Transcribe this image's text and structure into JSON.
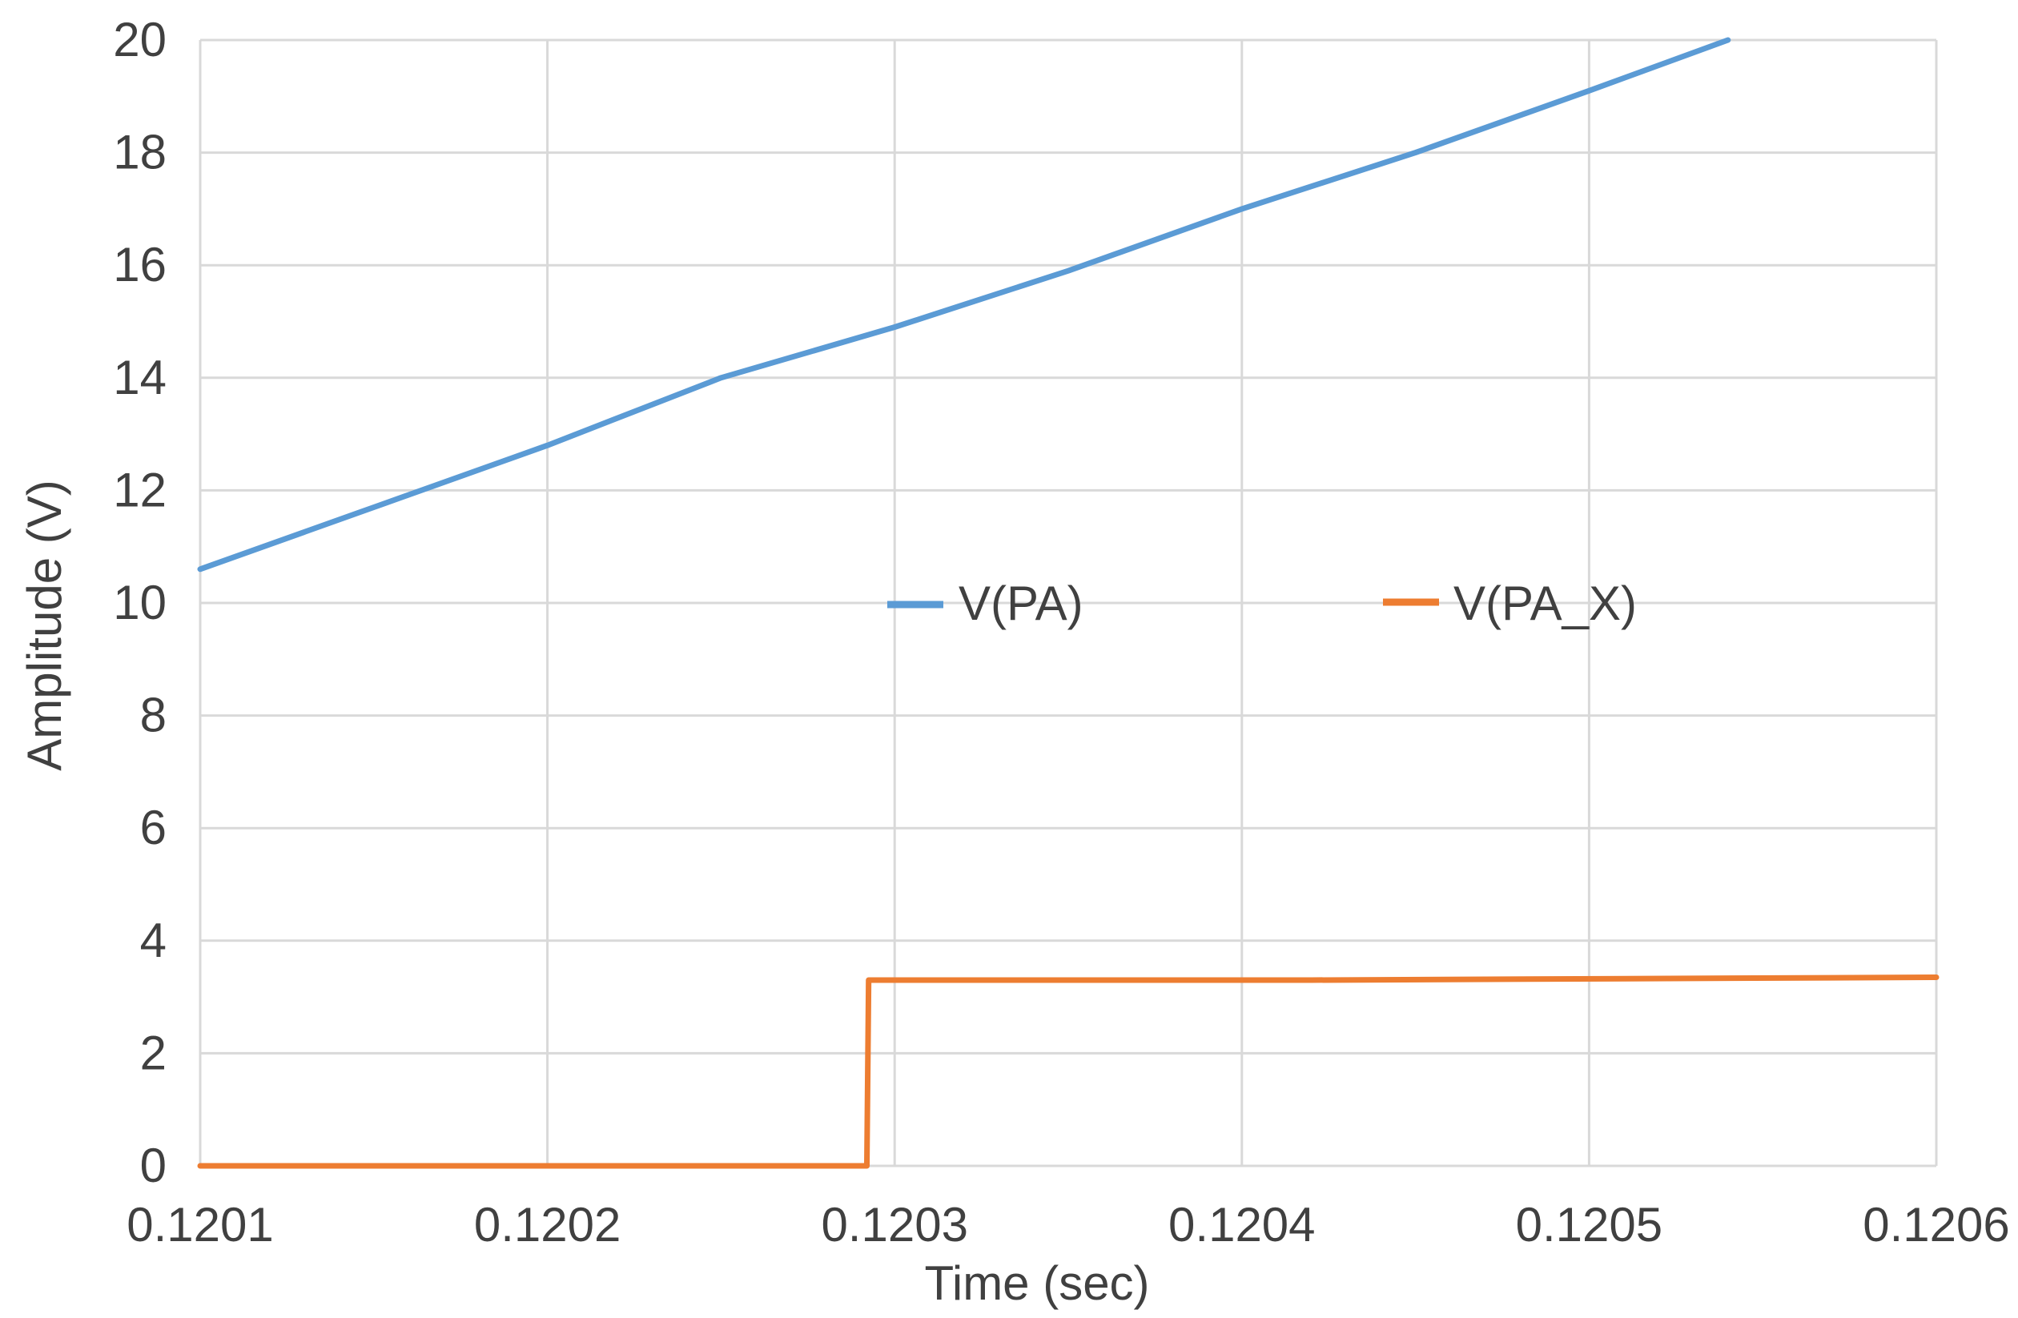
{
  "chart_data": {
    "type": "line",
    "title": "",
    "xlabel": "Time (sec)",
    "ylabel": "Amplitude (V)",
    "xlim": [
      0.1201,
      0.1206
    ],
    "ylim": [
      0,
      20
    ],
    "x_ticks": [
      "0.1201",
      "0.1202",
      "0.1203",
      "0.1204",
      "0.1205",
      "0.1206"
    ],
    "y_ticks": [
      "0",
      "2",
      "4",
      "6",
      "8",
      "10",
      "12",
      "14",
      "16",
      "18",
      "20"
    ],
    "grid": true,
    "legend_position": "center",
    "series": [
      {
        "name": "V(PA)",
        "color": "#5b9bd5",
        "x": [
          0.1201,
          0.12015,
          0.1202,
          0.12025,
          0.1203,
          0.12035,
          0.1204,
          0.12045,
          0.1205,
          0.12054
        ],
        "y": [
          10.6,
          11.7,
          12.8,
          14.0,
          14.9,
          15.9,
          17.0,
          18.0,
          19.1,
          20.0
        ]
      },
      {
        "name": "V(PA_X)",
        "color": "#ed7d31",
        "x": [
          0.1201,
          0.120292,
          0.1202925,
          0.12042,
          0.1206
        ],
        "y": [
          0.0,
          0.0,
          3.3,
          3.3,
          3.35
        ]
      }
    ]
  }
}
